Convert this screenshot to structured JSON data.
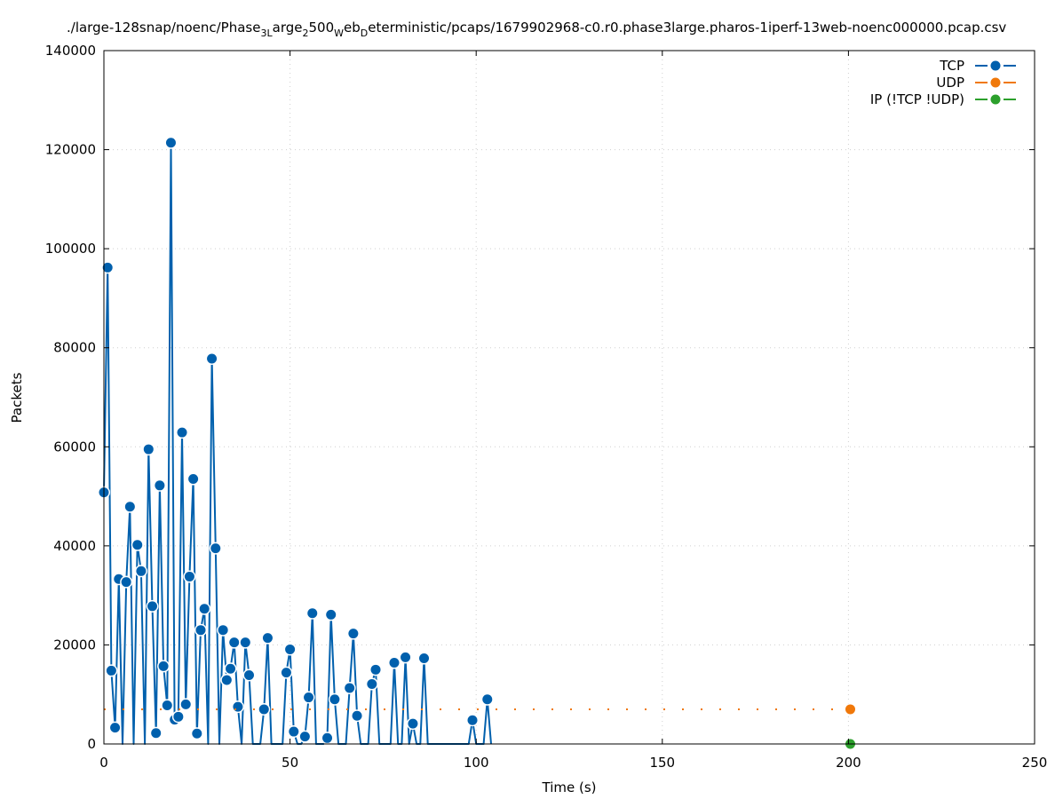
{
  "colors": {
    "tcp": "#0060ad",
    "udp": "#f0780a",
    "ip": "#2ca02c",
    "grid": "#cfcfcf",
    "axis": "#000000"
  },
  "chart_data": {
    "type": "line",
    "title": "./large-128snap/noenc/Phase_3Large_2500_Web_Deterministic/pcaps/1679902968-c0.r0.phase3large.pharos-1iperf-13web-noenc000000.pcap.csv",
    "title_parts": [
      {
        "text": "./large-128snap/noenc/Phase",
        "sub": false
      },
      {
        "text": "3L",
        "sub": true
      },
      {
        "text": "arge",
        "sub": false
      },
      {
        "text": "2",
        "sub": true
      },
      {
        "text": "500",
        "sub": false
      },
      {
        "text": "W",
        "sub": true
      },
      {
        "text": "eb",
        "sub": false
      },
      {
        "text": "D",
        "sub": true
      },
      {
        "text": "eterministic/pcaps/1679902968-c0.r0.phase3large.pharos-1iperf-13web-noenc000000.pcap.csv",
        "sub": false
      }
    ],
    "xlabel": "Time (s)",
    "ylabel": "Packets",
    "xlim": [
      0,
      250
    ],
    "ylim": [
      0,
      140000
    ],
    "xticks": [
      0,
      50,
      100,
      150,
      200,
      250
    ],
    "yticks": [
      0,
      20000,
      40000,
      60000,
      80000,
      100000,
      120000,
      140000
    ],
    "xtick_labels": [
      "0",
      "50",
      "100",
      "150",
      "200",
      "250"
    ],
    "ytick_labels": [
      "0",
      "20000",
      "40000",
      "60000",
      "80000",
      "100000",
      "120000",
      "140000"
    ],
    "grid": true,
    "legend_position": "top-right",
    "series": [
      {
        "name": "TCP",
        "color": "#0060ad",
        "style": "line-points",
        "x": [
          0,
          1,
          2,
          3,
          4,
          5,
          6,
          7,
          8,
          9,
          10,
          11,
          12,
          13,
          14,
          15,
          16,
          17,
          18,
          19,
          20,
          21,
          22,
          23,
          24,
          25,
          26,
          27,
          28,
          29,
          30,
          31,
          32,
          33,
          34,
          35,
          36,
          37,
          38,
          39,
          40,
          41,
          42,
          43,
          44,
          45,
          46,
          47,
          48,
          49,
          50,
          51,
          52,
          53,
          54,
          55,
          56,
          57,
          58,
          59,
          60,
          61,
          62,
          63,
          64,
          65,
          66,
          67,
          68,
          69,
          70,
          71,
          72,
          73,
          74,
          75,
          76,
          77,
          78,
          79,
          80,
          81,
          82,
          83,
          84,
          85,
          86,
          87,
          88,
          89,
          90,
          91,
          92,
          93,
          94,
          95,
          96,
          97,
          98,
          99,
          100,
          101,
          102,
          103,
          104
        ],
        "y": [
          50800,
          96200,
          14800,
          3300,
          33300,
          0,
          32700,
          47900,
          0,
          40200,
          34900,
          0,
          59500,
          27800,
          2200,
          52200,
          15700,
          7800,
          121400,
          4900,
          5500,
          62900,
          8000,
          33800,
          53500,
          2100,
          23000,
          27300,
          0,
          77800,
          39500,
          0,
          23000,
          12900,
          15200,
          20500,
          7500,
          0,
          20500,
          13900,
          0,
          0,
          0,
          7000,
          21400,
          0,
          0,
          0,
          0,
          14400,
          19100,
          2500,
          0,
          0,
          1500,
          9400,
          26400,
          0,
          0,
          0,
          1200,
          26100,
          9000,
          0,
          0,
          0,
          11300,
          22300,
          5700,
          0,
          0,
          0,
          12100,
          15000,
          0,
          0,
          0,
          0,
          16400,
          0,
          0,
          17500,
          0,
          4100,
          0,
          0,
          17300,
          0,
          0,
          0,
          0,
          0,
          0,
          0,
          0,
          0,
          0,
          0,
          0,
          4800,
          0,
          0,
          0,
          9000,
          0
        ]
      },
      {
        "name": "UDP",
        "color": "#f0780a",
        "style": "line-points",
        "x": [
          0,
          200.5
        ],
        "y": [
          7000,
          7000
        ]
      },
      {
        "name": "IP (!TCP  !UDP)",
        "color": "#2ca02c",
        "style": "line-points",
        "x": [
          200.5
        ],
        "y": [
          0
        ]
      }
    ]
  }
}
